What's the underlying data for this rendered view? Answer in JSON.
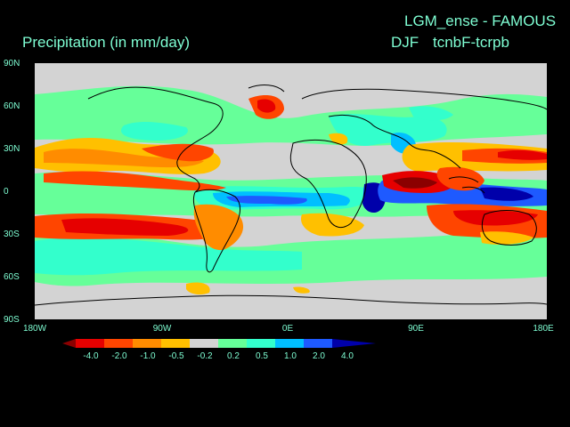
{
  "header": {
    "title_right_top": "LGM_ense - FAMOUS",
    "title_left": "Precipitation (in mm/day)",
    "season": "DJF",
    "experiment": "tcnbF-tcrpb"
  },
  "axes": {
    "lat_labels": [
      "90N",
      "60N",
      "30N",
      "0",
      "30S",
      "60S",
      "90S"
    ],
    "lon_labels": [
      "180W",
      "90W",
      "0E",
      "90E",
      "180E"
    ]
  },
  "legend": {
    "labels": [
      "-4.0",
      "-2.0",
      "-1.0",
      "-0.5",
      "-0.2",
      "0.2",
      "0.5",
      "1.0",
      "2.0",
      "4.0"
    ],
    "colors": [
      "#8b0000",
      "#e60000",
      "#ff4500",
      "#ff8c00",
      "#ffc000",
      "#d3d3d3",
      "#66ff99",
      "#33ffcc",
      "#00bfff",
      "#1e5aff",
      "#0000aa"
    ]
  },
  "palette": {
    "text": "#7fffd4",
    "background": "#000000",
    "neutral": "#d3d3d3",
    "coast": "#000000"
  }
}
